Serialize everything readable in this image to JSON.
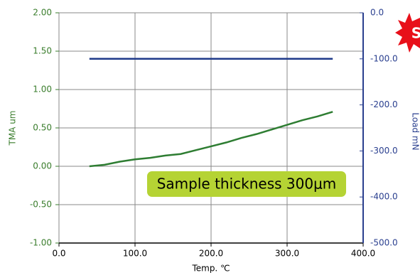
{
  "chart_data": {
    "type": "line",
    "x_label": "Temp. ℃",
    "y_label": "TMA um",
    "y2_label": "Load mN",
    "annotation": "Sample thickness 300μm",
    "badge": "S",
    "x": [
      40,
      60,
      80,
      100,
      120,
      140,
      160,
      180,
      200,
      220,
      240,
      260,
      280,
      300,
      320,
      340,
      360
    ],
    "series": [
      {
        "color": "#2e7d32",
        "values": [
          0.0,
          0.02,
          0.06,
          0.09,
          0.11,
          0.14,
          0.16,
          0.21,
          0.26,
          0.31,
          0.37,
          0.42,
          0.48,
          0.54,
          0.6,
          0.65,
          0.71
        ]
      },
      {
        "color": "#1f3a8a",
        "axis": "y2",
        "values": [
          -100,
          -100,
          -100,
          -100,
          -100,
          -100,
          -100,
          -100,
          -100,
          -100,
          -100,
          -100,
          -100,
          -100,
          -100,
          -100,
          -100
        ]
      }
    ],
    "xlim": [
      0,
      400
    ],
    "xticks": [
      {
        "value": 0,
        "label": "0.0"
      },
      {
        "value": 100,
        "label": "100.0"
      },
      {
        "value": 200,
        "label": "200.0"
      },
      {
        "value": 300,
        "label": "300.0"
      },
      {
        "value": 400,
        "label": "400.0"
      }
    ],
    "ylim": [
      -1,
      2
    ],
    "yticks": [
      {
        "value": -1,
        "label": "-1.00"
      },
      {
        "value": -0.5,
        "label": "-0.50"
      },
      {
        "value": 0,
        "label": "0.00"
      },
      {
        "value": 0.5,
        "label": "0.50"
      },
      {
        "value": 1,
        "label": "1.00"
      },
      {
        "value": 1.5,
        "label": "1.50"
      },
      {
        "value": 2,
        "label": "2.00"
      }
    ],
    "y2lim": [
      -500,
      0
    ],
    "y2ticks": [
      {
        "value": -500,
        "label": "-500.0"
      },
      {
        "value": -400,
        "label": "-400.0"
      },
      {
        "value": -300,
        "label": "-300.0"
      },
      {
        "value": -200,
        "label": "-200.0"
      },
      {
        "value": -100,
        "label": "-100.0"
      },
      {
        "value": 0,
        "label": "0.0"
      }
    ],
    "grid": true,
    "y_color": "#3a7d2c",
    "y2_color": "#2a3f8f"
  }
}
